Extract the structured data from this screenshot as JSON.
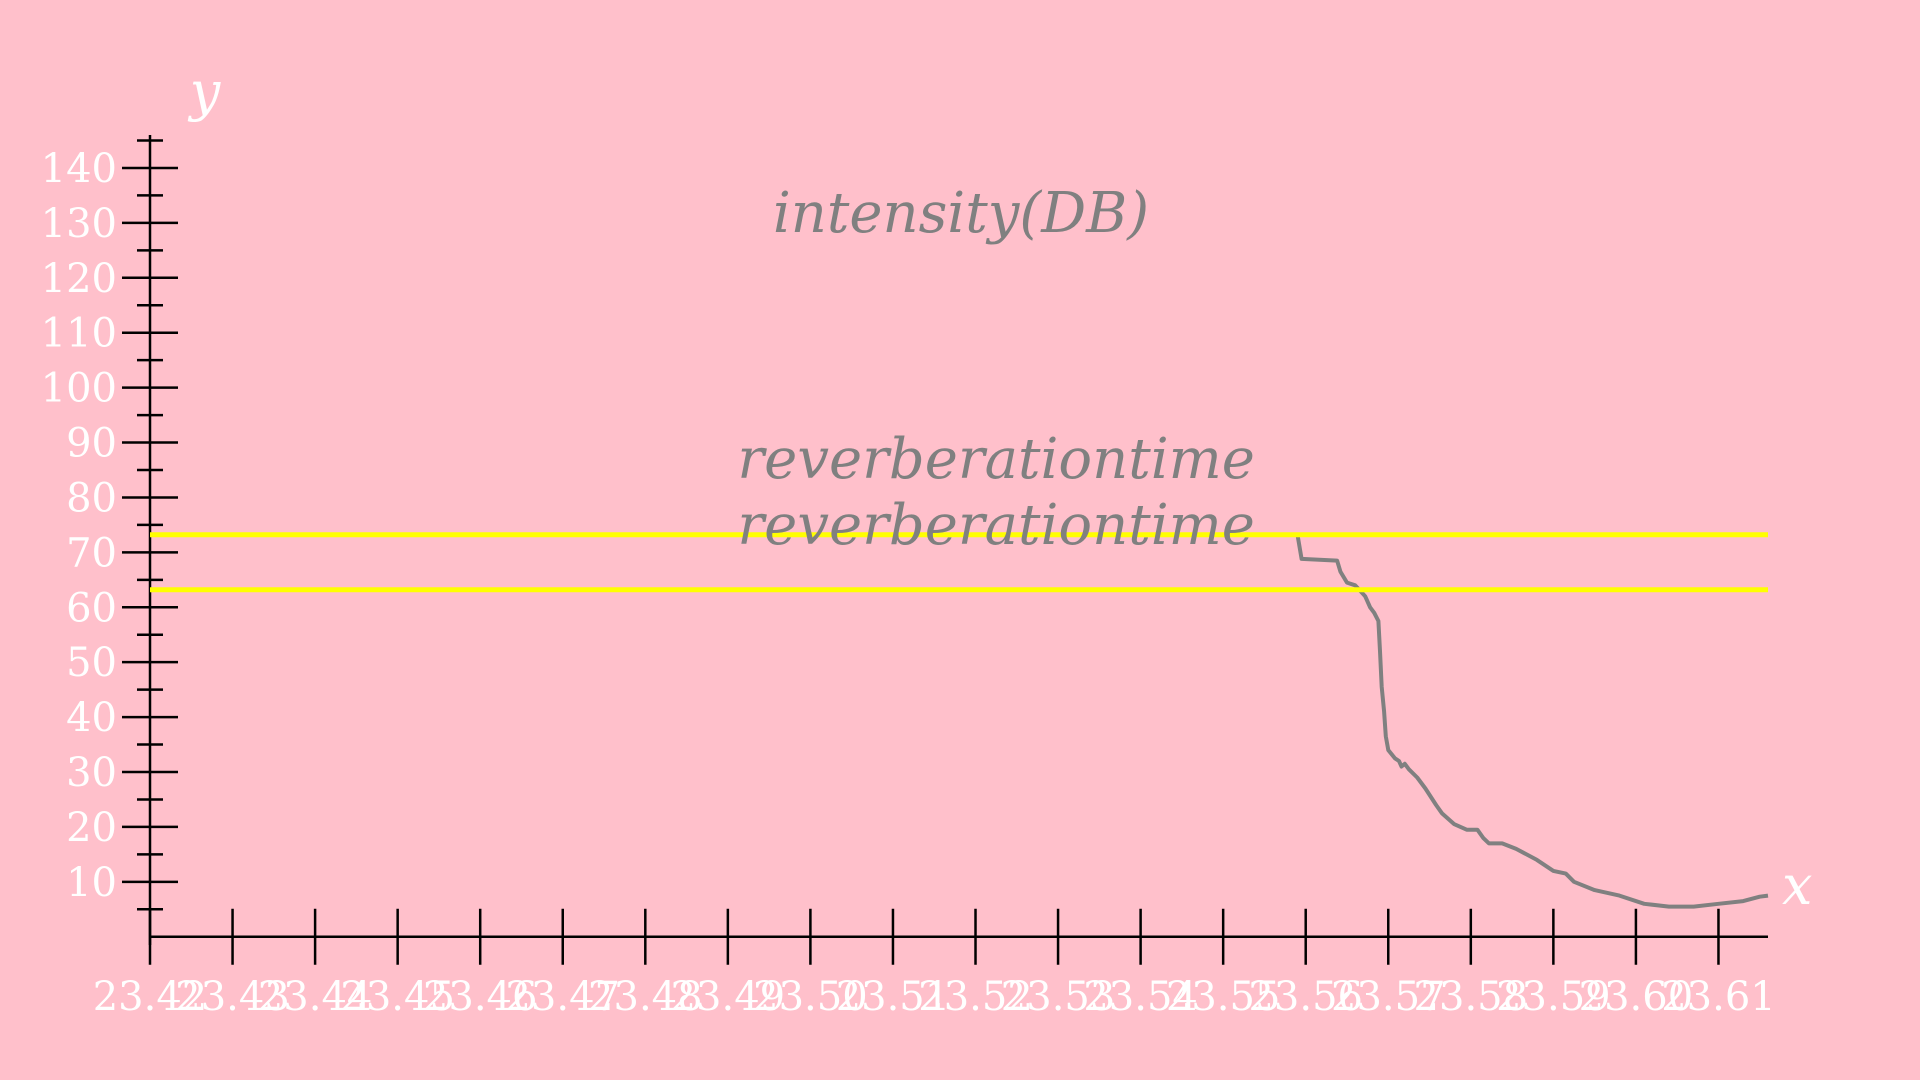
{
  "chart_data": {
    "type": "line",
    "title": "intensity(DB)",
    "xlabel": "x",
    "ylabel": "y",
    "xlim": [
      23.42,
      23.616
    ],
    "ylim": [
      -1.5,
      146
    ],
    "x_ticks": [
      23.42,
      23.43,
      23.44,
      23.45,
      23.46,
      23.47,
      23.48,
      23.49,
      23.5,
      23.51,
      23.52,
      23.53,
      23.54,
      23.55,
      23.56,
      23.57,
      23.58,
      23.59,
      23.6,
      23.61
    ],
    "x_tick_labels": [
      "23.42",
      "23.43",
      "23.44",
      "23.45",
      "23.46",
      "23.47",
      "23.48",
      "23.49",
      "23.50",
      "23.51",
      "23.52",
      "23.53",
      "23.54",
      "23.55",
      "23.56",
      "23.57",
      "23.58",
      "23.59",
      "23.60",
      "23.61"
    ],
    "y_ticks": [
      10,
      20,
      30,
      40,
      50,
      60,
      70,
      80,
      90,
      100,
      110,
      120,
      130,
      140
    ],
    "y_tick_labels": [
      "10",
      "20",
      "30",
      "40",
      "50",
      "60",
      "70",
      "80",
      "90",
      "100",
      "110",
      "120",
      "130",
      "140"
    ],
    "y_minor_ticks": [
      5,
      15,
      25,
      35,
      45,
      55,
      65,
      75,
      85,
      95,
      105,
      115,
      125,
      135,
      145
    ],
    "grid": false,
    "series": [
      {
        "color": "#808080",
        "x": [
          23.42,
          23.5555,
          23.559,
          23.5595,
          23.5638,
          23.5642,
          23.565,
          23.566,
          23.5672,
          23.5678,
          23.5683,
          23.5688,
          23.569,
          23.5692,
          23.5695,
          23.5697,
          23.57,
          23.5708,
          23.5713,
          23.5716,
          23.572,
          23.5725,
          23.5735,
          23.5745,
          23.5758,
          23.5765,
          23.578,
          23.5795,
          23.5808,
          23.5815,
          23.5822,
          23.5838,
          23.5855,
          23.588,
          23.59,
          23.5915,
          23.5925,
          23.595,
          23.598,
          23.601,
          23.604,
          23.607,
          23.61,
          23.613,
          23.615,
          23.616
        ],
        "y": [
          73.2,
          73.2,
          73.2,
          68.8,
          68.5,
          66.5,
          64.5,
          64.0,
          62.0,
          60.0,
          59.0,
          57.5,
          52.0,
          45.5,
          41.0,
          36.5,
          34.0,
          32.5,
          32.0,
          31.0,
          31.5,
          30.5,
          29.0,
          27.0,
          24.0,
          22.5,
          20.5,
          19.5,
          19.5,
          18.0,
          17.0,
          17.0,
          16.0,
          14.0,
          12.0,
          11.5,
          10.0,
          8.5,
          7.5,
          6.0,
          5.5,
          5.5,
          6.0,
          6.5,
          7.3,
          7.5
        ]
      },
      {
        "color": "#ffff00",
        "x": [
          23.42,
          23.616
        ],
        "y": [
          73.2,
          73.2
        ]
      },
      {
        "color": "#ffff00",
        "x": [
          23.42,
          23.616
        ],
        "y": [
          63.2,
          63.2
        ]
      }
    ],
    "annotations": [
      {
        "text": "reverberationtime",
        "x": 23.5225,
        "y": 83.5
      },
      {
        "text": "reverberationtime",
        "x": 23.5225,
        "y": 71.5
      }
    ]
  }
}
